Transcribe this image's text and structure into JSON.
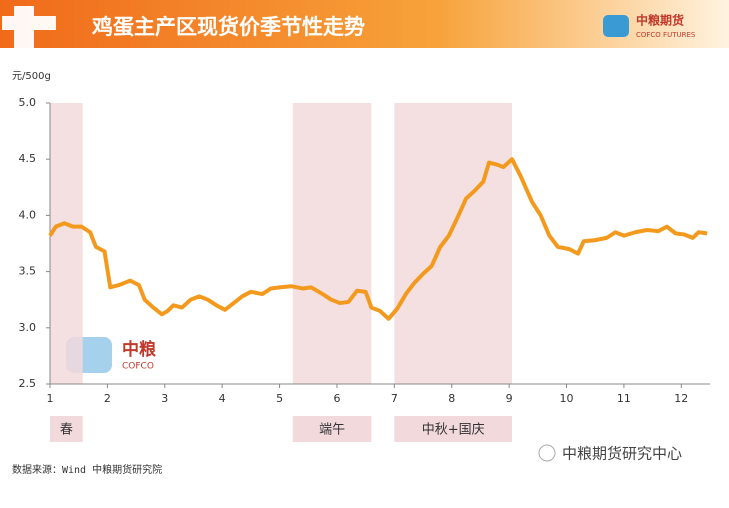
{
  "header": {
    "logo_name": "中粮期货",
    "logo_sub": "COFCO FUTURES"
  },
  "chart_data": {
    "type": "line",
    "title": "鸡蛋主产区现货价季节性走势",
    "y_unit": "元/500g",
    "x": [
      1.0,
      1.1,
      1.25,
      1.4,
      1.55,
      1.7,
      1.8,
      1.95,
      2.05,
      2.2,
      2.4,
      2.55,
      2.65,
      2.8,
      2.95,
      3.05,
      3.15,
      3.3,
      3.45,
      3.6,
      3.75,
      3.9,
      4.05,
      4.2,
      4.35,
      4.5,
      4.7,
      4.85,
      5.0,
      5.2,
      5.4,
      5.55,
      5.75,
      5.9,
      6.05,
      6.2,
      6.35,
      6.5,
      6.6,
      6.75,
      6.9,
      7.05,
      7.2,
      7.35,
      7.5,
      7.65,
      7.8,
      7.95,
      8.1,
      8.25,
      8.4,
      8.55,
      8.65,
      8.8,
      8.9,
      9.05,
      9.2,
      9.4,
      9.55,
      9.7,
      9.85,
      10.05,
      10.2,
      10.3,
      10.5,
      10.7,
      10.85,
      11.0,
      11.2,
      11.4,
      11.6,
      11.75,
      11.9,
      12.05,
      12.2,
      12.3,
      12.45
    ],
    "series": [
      {
        "color": "#f39a1e",
        "values": [
          3.82,
          3.9,
          3.93,
          3.9,
          3.9,
          3.85,
          3.72,
          3.68,
          3.36,
          3.38,
          3.42,
          3.38,
          3.25,
          3.18,
          3.12,
          3.15,
          3.2,
          3.18,
          3.25,
          3.28,
          3.25,
          3.2,
          3.16,
          3.22,
          3.28,
          3.32,
          3.3,
          3.35,
          3.36,
          3.37,
          3.35,
          3.36,
          3.3,
          3.25,
          3.22,
          3.23,
          3.33,
          3.32,
          3.18,
          3.15,
          3.08,
          3.17,
          3.3,
          3.4,
          3.48,
          3.55,
          3.72,
          3.82,
          3.98,
          4.15,
          4.22,
          4.3,
          4.47,
          4.45,
          4.43,
          4.5,
          4.35,
          4.12,
          4.0,
          3.82,
          3.72,
          3.7,
          3.66,
          3.77,
          3.78,
          3.8,
          3.85,
          3.82,
          3.85,
          3.87,
          3.86,
          3.9,
          3.84,
          3.83,
          3.8,
          3.85,
          3.84
        ]
      }
    ],
    "xlim": [
      1,
      12.5
    ],
    "xticks": [
      1,
      2,
      3,
      4,
      5,
      6,
      7,
      8,
      9,
      10,
      11,
      12
    ],
    "ylim": [
      2.5,
      5
    ],
    "yticks": [
      2.5,
      {
        "value": 3,
        "label": "3.0"
      },
      3.5,
      {
        "value": 4,
        "label": "4.0"
      },
      4.5,
      {
        "value": 5,
        "label": "5.0"
      }
    ],
    "band_color": "#f2d9dc",
    "bands": [
      {
        "label": "春",
        "from": 1,
        "to": 1.57
      },
      {
        "label": "端午",
        "from": 5.23,
        "to": 6.6
      },
      {
        "label": "中秋+国庆",
        "from": 7,
        "to": 9.05
      }
    ],
    "watermark": "中粮",
    "watermark_sub": "COFCO",
    "source": "数据来源：Wind 中粮期货研究院"
  },
  "footer": {
    "account": "中粮期货研究中心"
  }
}
